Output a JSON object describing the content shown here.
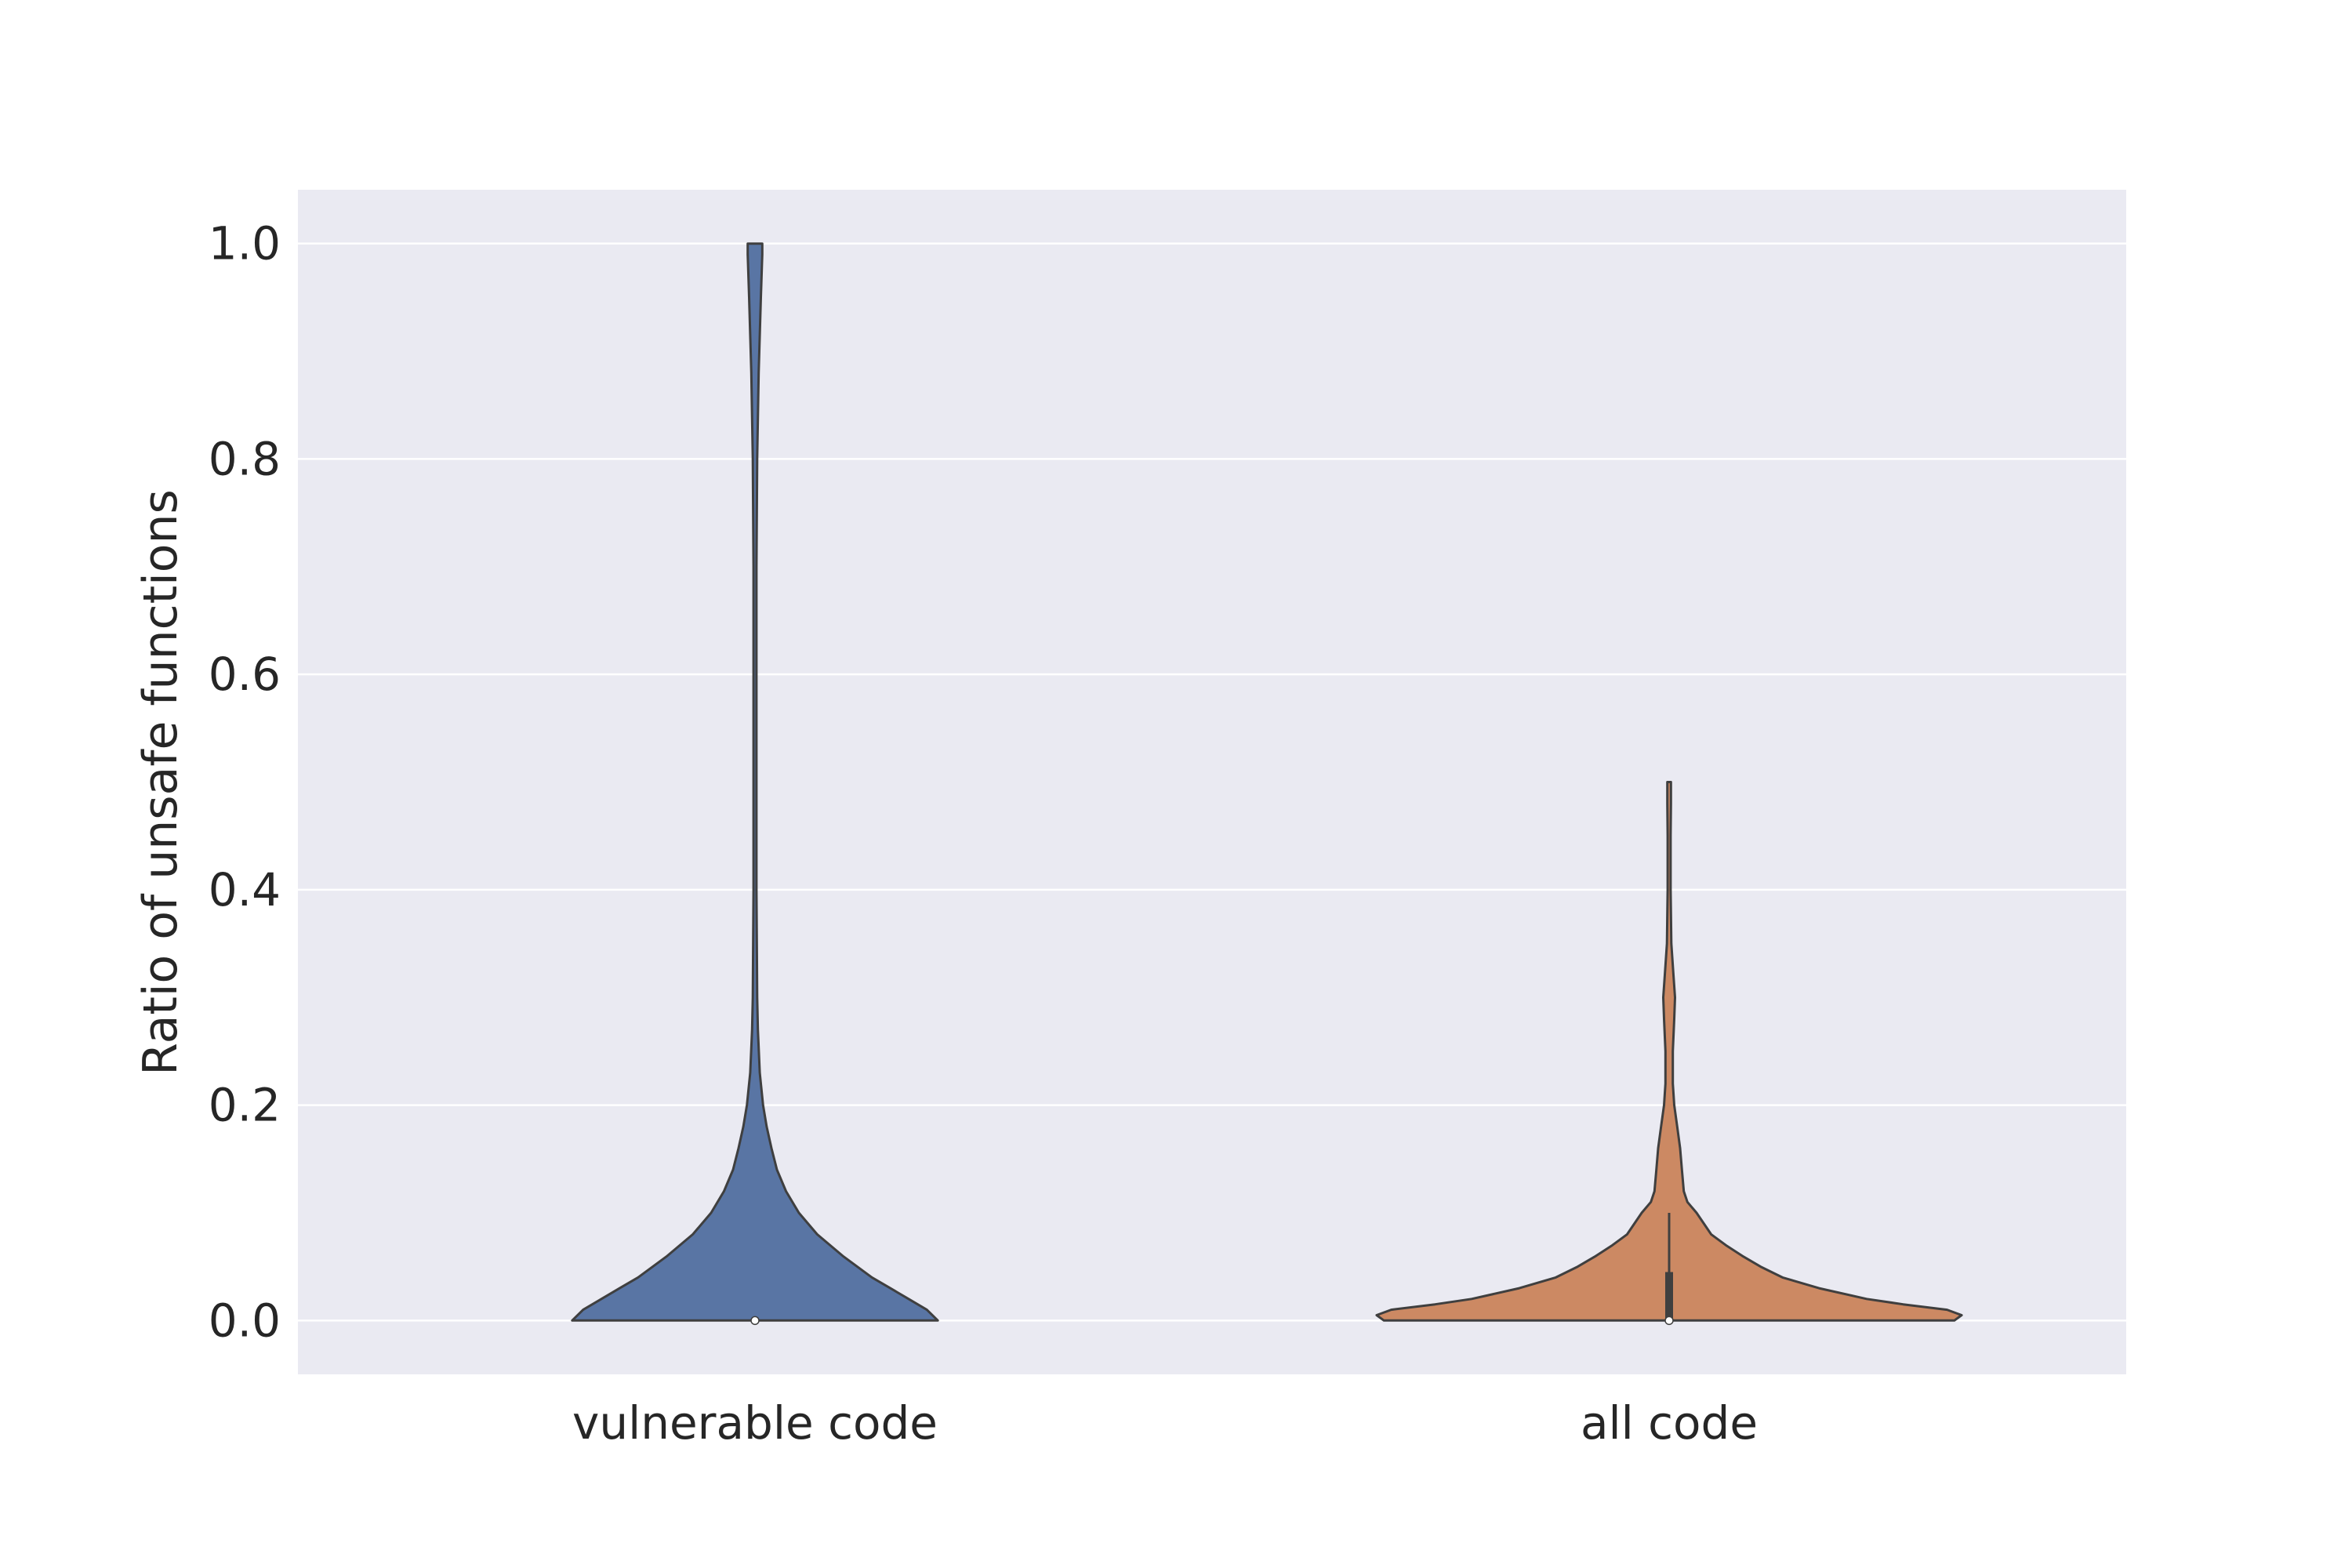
{
  "chart_data": {
    "type": "violin",
    "title": "",
    "xlabel": "",
    "ylabel": "Ratio of unsafe functions",
    "ylim": [
      -0.05,
      1.05
    ],
    "yticks": [
      "0.0",
      "0.2",
      "0.4",
      "0.6",
      "0.8",
      "1.0"
    ],
    "grid": true,
    "background": "#eaeaf2",
    "categories": [
      "vulnerable code",
      "all code"
    ],
    "series": [
      {
        "category": "vulnerable code",
        "color": "#5975a4",
        "min": 0.0,
        "max": 1.0,
        "median": 0.0,
        "q1": 0.0,
        "q3": 0.0,
        "density": [
          [
            0.0,
            0.5
          ],
          [
            0.01,
            0.47
          ],
          [
            0.02,
            0.42
          ],
          [
            0.03,
            0.37
          ],
          [
            0.04,
            0.32
          ],
          [
            0.06,
            0.24
          ],
          [
            0.08,
            0.17
          ],
          [
            0.1,
            0.12
          ],
          [
            0.12,
            0.085
          ],
          [
            0.14,
            0.06
          ],
          [
            0.16,
            0.045
          ],
          [
            0.18,
            0.032
          ],
          [
            0.2,
            0.022
          ],
          [
            0.23,
            0.013
          ],
          [
            0.27,
            0.008
          ],
          [
            0.3,
            0.006
          ],
          [
            0.4,
            0.004
          ],
          [
            0.5,
            0.004
          ],
          [
            0.6,
            0.004
          ],
          [
            0.7,
            0.004
          ],
          [
            0.8,
            0.006
          ],
          [
            0.88,
            0.01
          ],
          [
            0.95,
            0.016
          ],
          [
            0.99,
            0.02
          ],
          [
            1.0,
            0.02
          ]
        ]
      },
      {
        "category": "all code",
        "color": "#cc8963",
        "min": 0.0,
        "max": 0.5,
        "median": 0.0,
        "q1": 0.0,
        "q3": 0.045,
        "whisker_max": 0.1,
        "density": [
          [
            0.0,
            0.78
          ],
          [
            0.005,
            0.8
          ],
          [
            0.01,
            0.76
          ],
          [
            0.015,
            0.64
          ],
          [
            0.02,
            0.54
          ],
          [
            0.03,
            0.41
          ],
          [
            0.04,
            0.31
          ],
          [
            0.05,
            0.25
          ],
          [
            0.06,
            0.2
          ],
          [
            0.07,
            0.155
          ],
          [
            0.08,
            0.115
          ],
          [
            0.1,
            0.075
          ],
          [
            0.11,
            0.05
          ],
          [
            0.12,
            0.04
          ],
          [
            0.14,
            0.035
          ],
          [
            0.16,
            0.03
          ],
          [
            0.18,
            0.022
          ],
          [
            0.2,
            0.014
          ],
          [
            0.22,
            0.01
          ],
          [
            0.25,
            0.01
          ],
          [
            0.28,
            0.014
          ],
          [
            0.3,
            0.016
          ],
          [
            0.32,
            0.012
          ],
          [
            0.35,
            0.006
          ],
          [
            0.4,
            0.004
          ],
          [
            0.45,
            0.004
          ],
          [
            0.48,
            0.005
          ],
          [
            0.5,
            0.005
          ]
        ]
      }
    ]
  }
}
